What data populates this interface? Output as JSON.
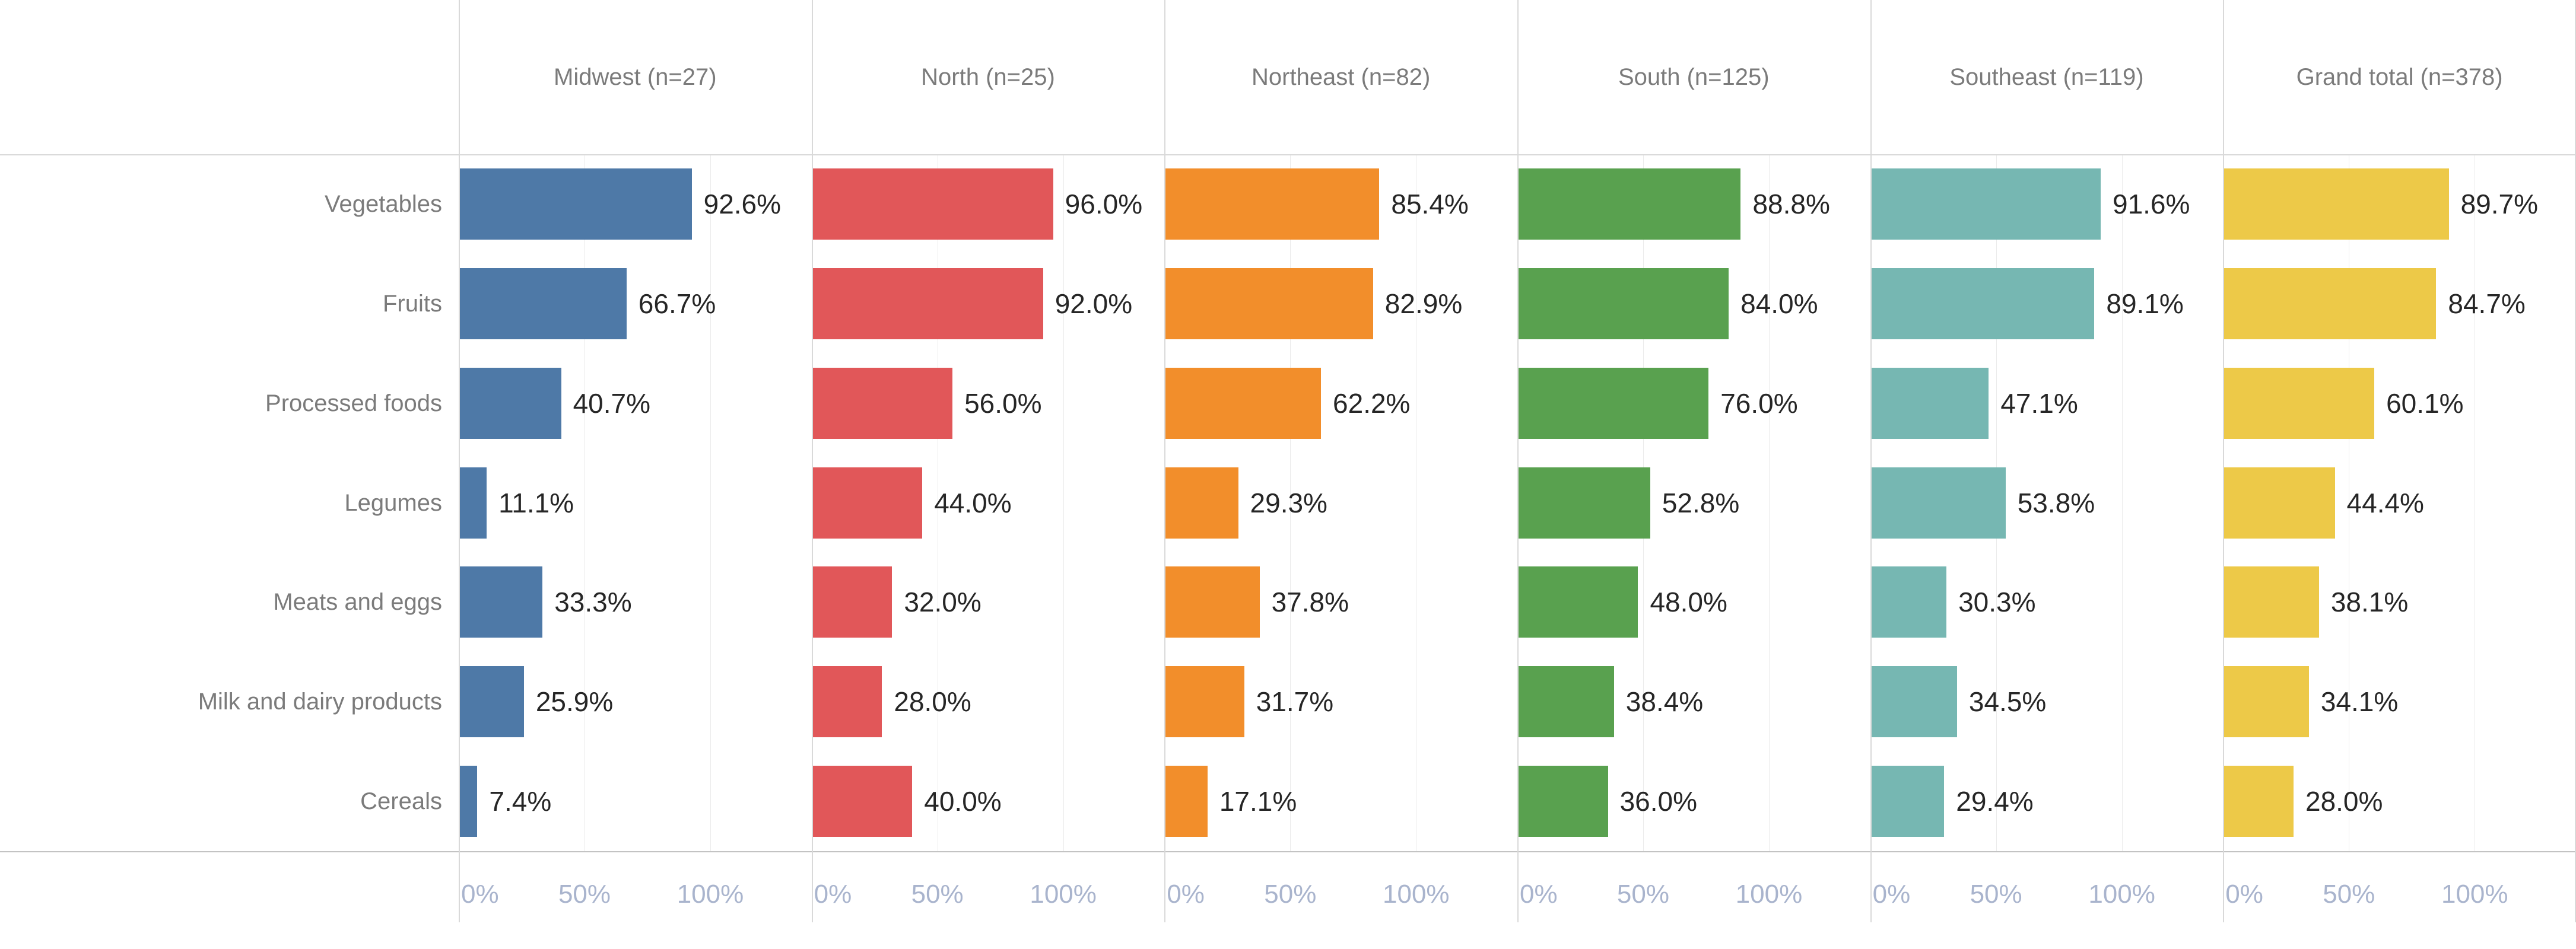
{
  "chart_data": {
    "type": "bar",
    "orientation": "horizontal",
    "title": "",
    "categories": [
      "Vegetables",
      "Fruits",
      "Processed foods",
      "Legumes",
      "Meats and eggs",
      "Milk and dairy products",
      "Cereals"
    ],
    "series": [
      {
        "name": "Midwest",
        "n": 27,
        "header": "Midwest (n=27)",
        "color": "#4e79a7",
        "values": [
          92.6,
          66.7,
          40.7,
          11.1,
          33.3,
          25.9,
          7.4
        ]
      },
      {
        "name": "North",
        "n": 25,
        "header": "North (n=25)",
        "color": "#e15759",
        "values": [
          96.0,
          92.0,
          56.0,
          44.0,
          32.0,
          28.0,
          40.0
        ]
      },
      {
        "name": "Northeast",
        "n": 82,
        "header": "Northeast (n=82)",
        "color": "#f28e2b",
        "values": [
          85.4,
          82.9,
          62.2,
          29.3,
          37.8,
          31.7,
          17.1
        ]
      },
      {
        "name": "South",
        "n": 125,
        "header": "South (n=125)",
        "color": "#59a14f",
        "values": [
          88.8,
          84.0,
          76.0,
          52.8,
          48.0,
          38.4,
          36.0
        ]
      },
      {
        "name": "Southeast",
        "n": 119,
        "header": "Southeast (n=119)",
        "color": "#76b7b2",
        "values": [
          91.6,
          89.1,
          47.1,
          53.8,
          30.3,
          34.5,
          29.4
        ]
      },
      {
        "name": "Grand total",
        "n": 378,
        "header": "Grand total (n=378)",
        "color": "#edc948",
        "values": [
          89.7,
          84.7,
          60.1,
          44.4,
          38.1,
          34.1,
          28.0
        ]
      }
    ],
    "value_suffix": "%",
    "value_decimals": 1,
    "x_ticks": [
      {
        "value": 0,
        "label": "0%"
      },
      {
        "value": 50,
        "label": "50%"
      },
      {
        "value": 100,
        "label": "100%"
      }
    ],
    "xlim": [
      0,
      100
    ],
    "grid": true,
    "legend": "none"
  },
  "colors": {
    "header_text": "#7b7b7b",
    "row_label_text": "#7b7b7b",
    "value_label_text": "#262626",
    "tick_text": "#a9b4cd",
    "separator": "#d9d9d9",
    "axis_line": "#c3c3c3",
    "gridline": "#ebebeb",
    "background": "#ffffff"
  }
}
